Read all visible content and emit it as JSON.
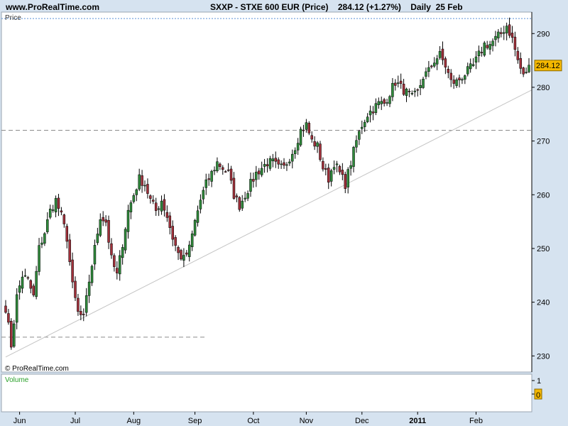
{
  "header": {
    "site": "www.ProRealTime.com",
    "title": "SXXP - STXE 600 EUR (Price)    284.12 (+1.27%)    Daily  25 Feb"
  },
  "price_panel": {
    "label": "Price",
    "last_price_tag": "284.12",
    "copyright": "© ProRealTime.com"
  },
  "volume_panel": {
    "label": "Volume",
    "ticks": [
      "1",
      "0"
    ],
    "last_volume_tag": "0"
  },
  "colors": {
    "up": "#2f8a3b",
    "down": "#a0303a",
    "wick": "#000000",
    "background": "#d6e3f0",
    "panel": "#ffffff",
    "tag": "#f5b800",
    "volume_label": "#2aa02a",
    "top_line": "#5a90d8",
    "dashed": "#8c8c8c",
    "trendline": "#c4c4c4"
  },
  "chart_data": {
    "type": "candlestick",
    "title": "SXXP - STXE 600 EUR (Price)",
    "ylim": [
      227,
      294
    ],
    "yticks": [
      230,
      240,
      250,
      260,
      270,
      280,
      290
    ],
    "x_month_labels": [
      "Jun",
      "Jul",
      "Aug",
      "Sep",
      "Oct",
      "Nov",
      "Dec",
      "2011",
      "Feb"
    ],
    "x_month_index": [
      5,
      25,
      46,
      68,
      89,
      108,
      128,
      148,
      169
    ],
    "num_bars": 189,
    "last_price": 284.12,
    "horizontal_levels": [
      {
        "value": 292.8,
        "style": "dotted",
        "span": "full"
      },
      {
        "value": 272.0,
        "style": "dashed",
        "span": "full"
      },
      {
        "value": 233.5,
        "style": "dashed",
        "span": "left"
      }
    ],
    "trendline": {
      "from": {
        "index": 0,
        "value": 229.8
      },
      "to": {
        "index": 188,
        "value": 279.5
      }
    },
    "anchors": [
      [
        0,
        239.0
      ],
      [
        2,
        232.0
      ],
      [
        4,
        241.0
      ],
      [
        6,
        245.0
      ],
      [
        8,
        244.0
      ],
      [
        10,
        241.0
      ],
      [
        12,
        250.0
      ],
      [
        14,
        253.0
      ],
      [
        16,
        257.0
      ],
      [
        18,
        259.0
      ],
      [
        20,
        256.0
      ],
      [
        22,
        252.0
      ],
      [
        24,
        243.0
      ],
      [
        26,
        238.0
      ],
      [
        28,
        237.0
      ],
      [
        30,
        244.0
      ],
      [
        32,
        250.0
      ],
      [
        34,
        256.0
      ],
      [
        36,
        255.0
      ],
      [
        38,
        248.0
      ],
      [
        40,
        245.0
      ],
      [
        42,
        251.0
      ],
      [
        44,
        257.0
      ],
      [
        46,
        260.0
      ],
      [
        48,
        263.0
      ],
      [
        50,
        262.0
      ],
      [
        52,
        259.0
      ],
      [
        54,
        257.0
      ],
      [
        56,
        259.0
      ],
      [
        58,
        256.0
      ],
      [
        60,
        252.0
      ],
      [
        62,
        249.0
      ],
      [
        64,
        248.0
      ],
      [
        66,
        250.0
      ],
      [
        68,
        255.0
      ],
      [
        70,
        259.0
      ],
      [
        72,
        262.0
      ],
      [
        74,
        264.0
      ],
      [
        76,
        266.0
      ],
      [
        78,
        265.0
      ],
      [
        80,
        264.0
      ],
      [
        82,
        260.0
      ],
      [
        84,
        258.0
      ],
      [
        86,
        260.0
      ],
      [
        88,
        262.0
      ],
      [
        90,
        264.0
      ],
      [
        92,
        265.0
      ],
      [
        94,
        266.0
      ],
      [
        96,
        266.0
      ],
      [
        98,
        265.0
      ],
      [
        100,
        265.0
      ],
      [
        102,
        267.0
      ],
      [
        104,
        269.0
      ],
      [
        106,
        272.0
      ],
      [
        108,
        273.0
      ],
      [
        110,
        270.0
      ],
      [
        112,
        269.0
      ],
      [
        114,
        265.0
      ],
      [
        116,
        263.0
      ],
      [
        118,
        266.0
      ],
      [
        120,
        264.0
      ],
      [
        122,
        262.0
      ],
      [
        124,
        266.0
      ],
      [
        126,
        270.0
      ],
      [
        128,
        273.0
      ],
      [
        130,
        275.0
      ],
      [
        132,
        276.0
      ],
      [
        134,
        277.0
      ],
      [
        136,
        277.0
      ],
      [
        138,
        279.0
      ],
      [
        140,
        281.0
      ],
      [
        142,
        280.0
      ],
      [
        144,
        279.0
      ],
      [
        146,
        278.0
      ],
      [
        148,
        279.0
      ],
      [
        150,
        282.0
      ],
      [
        152,
        283.0
      ],
      [
        154,
        285.0
      ],
      [
        156,
        286.0
      ],
      [
        158,
        284.0
      ],
      [
        160,
        281.0
      ],
      [
        162,
        281.0
      ],
      [
        164,
        282.0
      ],
      [
        166,
        283.0
      ],
      [
        168,
        284.0
      ],
      [
        170,
        286.0
      ],
      [
        172,
        288.0
      ],
      [
        174,
        288.0
      ],
      [
        176,
        289.0
      ],
      [
        178,
        290.0
      ],
      [
        180,
        291.5
      ],
      [
        182,
        289.0
      ],
      [
        184,
        285.0
      ],
      [
        186,
        282.0
      ],
      [
        188,
        284.12
      ]
    ]
  }
}
